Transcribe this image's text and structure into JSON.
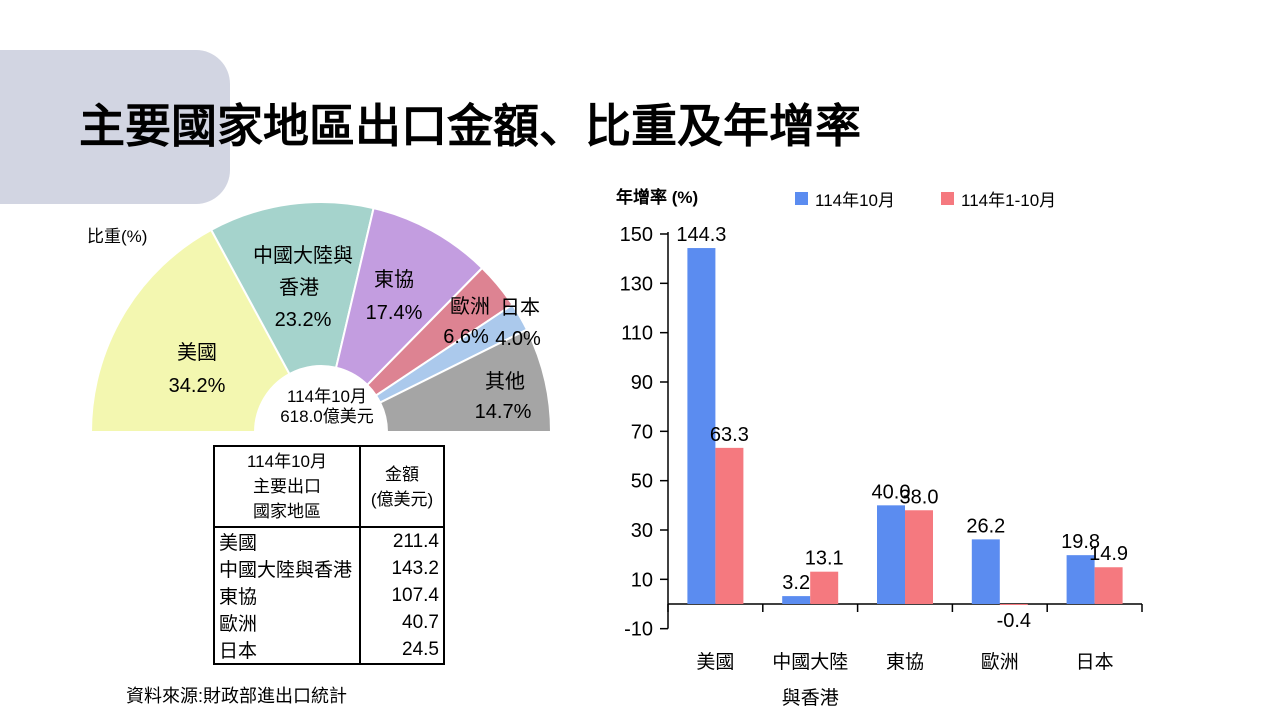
{
  "title": "主要國家地區出口金額、比重及年增率",
  "source_note": "資料來源:財政部進出口統計",
  "pie": {
    "center_lines": [
      "114年10月",
      "618.0億美元"
    ]
  },
  "table": {
    "header_col1": [
      "114年10月",
      "主要出口",
      "國家地區"
    ],
    "header_col2": [
      "金額",
      "(億美元)"
    ],
    "rows": [
      {
        "name": "美國",
        "value": "211.4"
      },
      {
        "name": "中國大陸與香港",
        "value": "143.2"
      },
      {
        "name": "東協",
        "value": "107.4"
      },
      {
        "name": "歐洲",
        "value": "40.7"
      },
      {
        "name": "日本",
        "value": "24.5"
      }
    ]
  },
  "chart_data": [
    {
      "type": "pie",
      "subtype": "half-donut",
      "title": "比重(%)",
      "center_label": "114年10月 618.0億美元",
      "labels": [
        "美國",
        "中國大陸與香港",
        "東協",
        "歐洲",
        "日本",
        "其他"
      ],
      "labels_display": [
        [
          "美國"
        ],
        [
          "中國大陸與",
          "香港"
        ],
        [
          "東協"
        ],
        [
          "歐洲"
        ],
        [
          "日本"
        ],
        [
          "其他"
        ]
      ],
      "values": [
        34.2,
        23.2,
        17.4,
        6.6,
        4.0,
        14.7
      ],
      "colors": [
        "#f3f7b0",
        "#a5d3cc",
        "#c39de0",
        "#dd8392",
        "#abc9ec",
        "#a5a5a5"
      ]
    },
    {
      "type": "bar",
      "title": "年增率 (%)",
      "categories": [
        "美國",
        "中國大陸與香港",
        "東協",
        "歐洲",
        "日本"
      ],
      "categories_display": [
        [
          "美國"
        ],
        [
          "中國大陸",
          "與香港"
        ],
        [
          "東協"
        ],
        [
          "歐洲"
        ],
        [
          "日本"
        ]
      ],
      "series": [
        {
          "name": "114年10月",
          "color": "#5b8cf0",
          "values": [
            144.3,
            3.2,
            40.0,
            26.2,
            19.8
          ]
        },
        {
          "name": "114年1-10月",
          "color": "#f5797f",
          "values": [
            63.3,
            13.1,
            38.0,
            -0.4,
            14.9
          ]
        }
      ],
      "ylim": [
        -10,
        150
      ],
      "ytick_step": 20,
      "grid": false,
      "legend_position": "top-right"
    }
  ]
}
